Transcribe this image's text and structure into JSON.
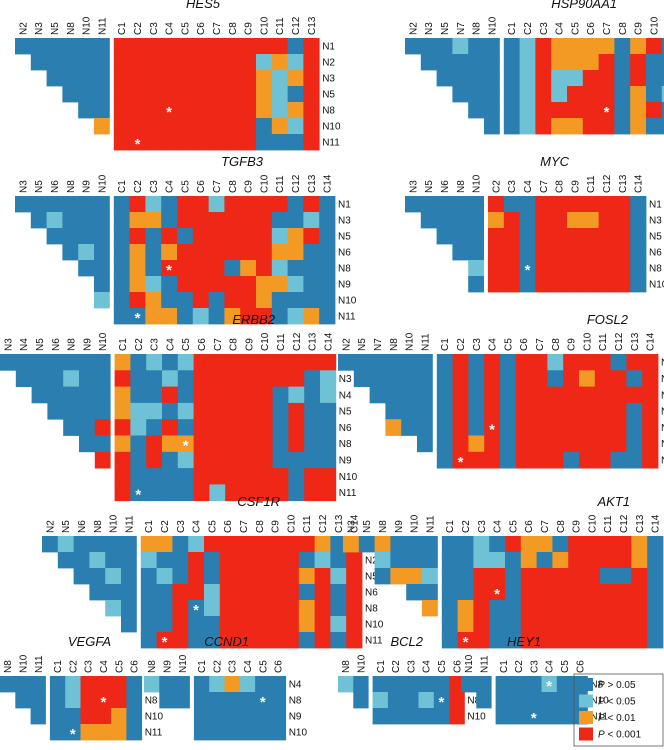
{
  "colors": {
    "c0": "#2a7fb0",
    "c1": "#6fc1d6",
    "c2": "#f39a25",
    "c3": "#ee2716"
  },
  "legend": [
    {
      "level": 0,
      "p_symbol": "P",
      "text": " > 0.05"
    },
    {
      "level": 1,
      "p_symbol": "P",
      "text": " < 0.05"
    },
    {
      "level": 2,
      "p_symbol": "P",
      "text": " < 0.01"
    },
    {
      "level": 3,
      "p_symbol": "P",
      "text": " < 0.001"
    }
  ],
  "chart_data": [
    {
      "type": "heatmap",
      "title": "HES5",
      "top_n": [
        "N2",
        "N3",
        "N5",
        "N8",
        "N10",
        "N11"
      ],
      "c_cols": [
        "C1",
        "C2",
        "C3",
        "C4",
        "C5",
        "C6",
        "C7",
        "C8",
        "C9",
        "C10",
        "C11",
        "C12",
        "C13"
      ],
      "rows": [
        "N1",
        "N2",
        "N3",
        "N5",
        "N8",
        "N10",
        "N11"
      ],
      "tri": [
        "000000",
        "00000",
        "0000",
        "000",
        "00",
        "2",
        ""
      ],
      "cells": [
        "3333333333303",
        "3333333331213",
        "3333333332123",
        "3333333332103",
        "3333333332123",
        "3333333330213",
        "3333333330003"
      ],
      "stars": [
        [
          4,
          3
        ],
        [
          6,
          1
        ]
      ]
    },
    {
      "type": "heatmap",
      "title": "HSP90AA1",
      "top_n": [
        "N2",
        "N3",
        "N5",
        "N7",
        "N8",
        "N10"
      ],
      "c_cols": [
        "C1",
        "C2",
        "C3",
        "C4",
        "C5",
        "C6",
        "C7",
        "C8",
        "C9",
        "C10",
        "C11",
        "C12",
        "C13"
      ],
      "rows": [
        "N1",
        "N2",
        "N3",
        "N7",
        "N8",
        "N10"
      ],
      "tri": [
        "000100",
        "00000",
        "0000",
        "000",
        "00",
        "0"
      ],
      "cells": [
        "0132222023000",
        "0132223030020",
        "0131133030000",
        "0131333020101",
        "0133333023010",
        "0132233020000"
      ],
      "stars": [
        [
          4,
          6
        ]
      ]
    },
    {
      "type": "heatmap",
      "title": "TGFB3",
      "top_n": [
        "N3",
        "N5",
        "N6",
        "N8",
        "N9",
        "N10"
      ],
      "c_cols": [
        "C1",
        "C2",
        "C3",
        "C4",
        "C5",
        "C6",
        "C7",
        "C8",
        "C9",
        "C10",
        "C11",
        "C12",
        "C13",
        "C14"
      ],
      "rows": [
        "N1",
        "N3",
        "N5",
        "N6",
        "N8",
        "N9",
        "N10",
        "N11"
      ],
      "tri": [
        "000000",
        "01000",
        "0000",
        "010",
        "00",
        "0",
        "1",
        ""
      ],
      "cells": [
        "03103313333030",
        "02203333330010",
        "03030333331230",
        "02023333332200",
        "02033330231000",
        "02103333322100",
        "03200303320000",
        "00220102330120"
      ],
      "stars": [
        [
          4,
          3
        ],
        [
          7,
          1
        ]
      ]
    },
    {
      "type": "heatmap",
      "title": "MYC",
      "top_n": [
        "N3",
        "N5",
        "N6",
        "N8",
        "N10"
      ],
      "c_cols": [
        "C2",
        "C3",
        "C4",
        "C7",
        "C8",
        "C9",
        "C11",
        "C12",
        "C13",
        "C14"
      ],
      "rows": [
        "N1",
        "N3",
        "N5",
        "N6",
        "N8",
        "N10"
      ],
      "tri": [
        "00000",
        "0000",
        "000",
        "00",
        "1",
        "0"
      ],
      "cells": [
        "3003333330",
        "2303322330",
        "3303333330",
        "3303333330",
        "3303333330",
        "3303333330"
      ],
      "stars": [
        [
          4,
          2
        ]
      ]
    },
    {
      "type": "heatmap",
      "title": "ERBB2",
      "top_n": [
        "N3",
        "N4",
        "N5",
        "N6",
        "N8",
        "N9",
        "N10"
      ],
      "c_cols": [
        "C1",
        "C2",
        "C3",
        "C4",
        "C5",
        "C6",
        "C7",
        "C8",
        "C9",
        "C10",
        "C11",
        "C12",
        "C13",
        "C14"
      ],
      "rows": [
        "N1",
        "N3",
        "N4",
        "N5",
        "N6",
        "N8",
        "N9",
        "N10",
        "N11"
      ],
      "tri": [
        "0000000",
        "000100",
        "00000",
        "0000",
        "003",
        "00",
        "3",
        "",
        ""
      ],
      "cells": [
        "20101333333333",
        "30010333333301",
        "20030333330101",
        "21101333330300",
        "31030333330300",
        "20322333330300",
        "30301333330000",
        "30000333333033",
        "30000313333033"
      ],
      "stars": [
        [
          5,
          4
        ],
        [
          8,
          1
        ]
      ]
    },
    {
      "type": "heatmap",
      "title": "FOSL2",
      "top_n": [
        "N2",
        "N5",
        "N7",
        "N8",
        "N10",
        "N11"
      ],
      "c_cols": [
        "C1",
        "C2",
        "C3",
        "C4",
        "C5",
        "C6",
        "C7",
        "C8",
        "C9",
        "C10",
        "C11",
        "C12",
        "C13",
        "C14"
      ],
      "rows": [
        "N1",
        "N2",
        "N5",
        "N7",
        "N8",
        "N10",
        "N11"
      ],
      "tri": [
        "000000",
        "00000",
        "0000",
        "000",
        "200",
        "0",
        ""
      ],
      "cells": [
        "03030331333033",
        "03030330323303",
        "03030333333333",
        "03030333333303",
        "03030333333303",
        "03230333333303",
        "03330333033003"
      ],
      "stars": [
        [
          4,
          3
        ],
        [
          6,
          1
        ]
      ]
    },
    {
      "type": "heatmap",
      "title": "CSF1R",
      "top_n": [
        "N2",
        "N5",
        "N6",
        "N8",
        "N10",
        "N11"
      ],
      "c_cols": [
        "C1",
        "C2",
        "C3",
        "C4",
        "C5",
        "C6",
        "C7",
        "C8",
        "C9",
        "C10",
        "C11",
        "C12",
        "C13",
        "C14"
      ],
      "rows": [
        "N1",
        "N2",
        "N5",
        "N6",
        "N8",
        "N10",
        "N11"
      ],
      "tri": [
        "010000",
        "00100",
        "0010",
        "000",
        "10",
        "0",
        ""
      ],
      "cells": [
        "22013333333203",
        "10030333330103",
        "01030333332313",
        "00331333330303",
        "00301333332303",
        "00300333332313",
        "03300333330303"
      ],
      "stars": [
        [
          4,
          3
        ],
        [
          6,
          1
        ]
      ]
    },
    {
      "type": "heatmap",
      "title": "AKT1",
      "top_n": [
        "N3",
        "N5",
        "N8",
        "N9",
        "N10",
        "N11"
      ],
      "c_cols": [
        "C1",
        "C2",
        "C3",
        "C4",
        "C5",
        "C6",
        "C7",
        "C8",
        "C9",
        "C10",
        "C11",
        "C12",
        "C13",
        "C14"
      ],
      "rows": [
        "N1",
        "N3",
        "N5",
        "N8",
        "N9",
        "N10",
        "N11"
      ],
      "tri": [
        "202000",
        "1000",
        "0221",
        "00",
        "2",
        "",
        ""
      ],
      "cells": [
        "00103220333320",
        "00110202333320",
        "00330333330030",
        "00330333333330",
        "02300333333330",
        "02300333333330",
        "03300333333330"
      ],
      "stars": [
        [
          3,
          3
        ],
        [
          6,
          1
        ]
      ]
    },
    {
      "type": "heatmap",
      "title": "VEGFA",
      "top_n": [
        "N8",
        "N10",
        "N11"
      ],
      "c_cols": [
        "C1",
        "C2",
        "C3",
        "C4",
        "C5",
        "C6"
      ],
      "rows": [
        "N4",
        "N8",
        "N10",
        "N11"
      ],
      "tri": [
        "000",
        "00",
        "0",
        ""
      ],
      "cells": [
        "013330",
        "013330",
        "003320",
        "002220"
      ],
      "stars": [
        [
          1,
          3
        ],
        [
          3,
          1
        ]
      ]
    },
    {
      "type": "heatmap",
      "title": "CCND1",
      "top_n": [
        "N8",
        "N9",
        "N10"
      ],
      "c_cols": [
        "C1",
        "C2",
        "C3",
        "C4",
        "C5",
        "C6"
      ],
      "rows": [
        "N4",
        "N8",
        "N9",
        "N10"
      ],
      "tri": [
        "100",
        "00",
        "",
        ""
      ],
      "cells": [
        "012100",
        "000000",
        "000000",
        "000000"
      ],
      "stars": [
        [
          1,
          4
        ]
      ]
    },
    {
      "type": "heatmap",
      "title": "BCL2",
      "top_n": [
        "N8",
        "N10"
      ],
      "c_cols": [
        "C1",
        "C2",
        "C3",
        "C4",
        "C5",
        "C6"
      ],
      "rows": [
        "N4",
        "N8",
        "N10"
      ],
      "tri": [
        "10",
        "0",
        ""
      ],
      "cells": [
        "000003",
        "100103",
        "000003"
      ],
      "stars": [
        [
          1,
          4
        ]
      ]
    },
    {
      "type": "heatmap",
      "title": "HEY1",
      "top_n": [
        "N10",
        "N11"
      ],
      "c_cols": [
        "C1",
        "C2",
        "C3",
        "C4",
        "C5",
        "C6"
      ],
      "rows": [
        "N8",
        "N10",
        "N11"
      ],
      "tri": [
        "00",
        "0",
        ""
      ],
      "cells": [
        "000100",
        "000000",
        "000000"
      ],
      "stars": [
        [
          0,
          3
        ],
        [
          2,
          2
        ]
      ]
    }
  ]
}
